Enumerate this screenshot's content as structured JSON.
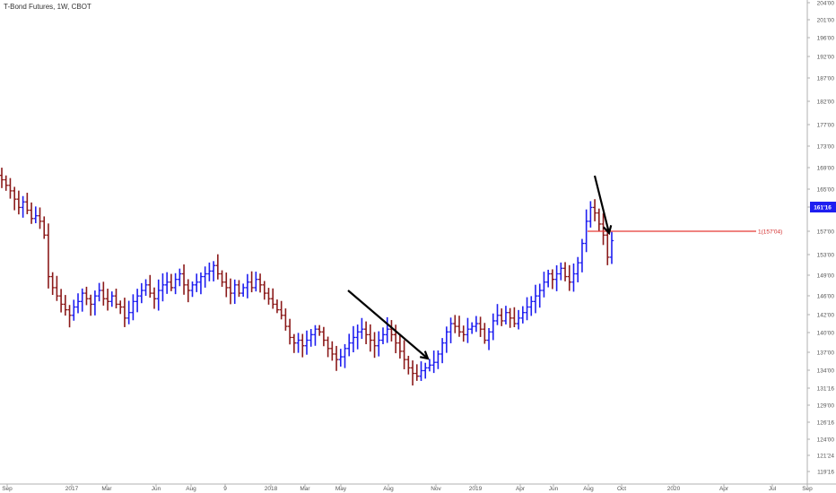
{
  "title": "T-Bond Futures, 1W, CBOT",
  "chart_data": {
    "type": "ohlc",
    "symbol": "T-Bond Futures",
    "interval": "1W",
    "exchange": "CBOT",
    "colors": {
      "up": "#1e1ef0",
      "down": "#8b1a1a",
      "level": "#e53935",
      "badge": "#1e1ef0",
      "arrow": "#000000"
    },
    "ylim": [
      117.5,
      205.0
    ],
    "y_tick_labels": [
      "204'00",
      "201'00",
      "196'00",
      "192'00",
      "187'00",
      "182'00",
      "177'00",
      "173'00",
      "169'00",
      "165'00",
      "161'16",
      "157'00",
      "153'00",
      "149'00",
      "146'00",
      "142'00",
      "140'00",
      "137'00",
      "134'00",
      "131'16",
      "129'00",
      "126'16",
      "124'00",
      "121'24",
      "119'16"
    ],
    "y_tick_values": [
      204,
      201,
      196,
      192,
      187,
      182,
      177,
      173,
      169,
      165,
      161.5,
      157,
      153,
      149,
      146,
      142,
      140,
      137,
      134,
      131.5,
      129,
      126.5,
      124,
      121.75,
      119.5
    ],
    "x_tick_labels": [
      "Sep",
      "2017",
      "Mar",
      "Jun",
      "Aug",
      "9",
      "2018",
      "Mar",
      "May",
      "Aug",
      "Nov",
      "2019",
      "Apr",
      "Jun",
      "Aug",
      "Oct",
      "2020",
      "Apr",
      "Jul",
      "Sep"
    ],
    "current_price": "161'16",
    "level": {
      "value": 157.0,
      "label": "1(157'04)"
    },
    "arrows": [
      {
        "from": [
          146.8,
          "2018-05"
        ],
        "to": [
          136.0,
          "2018-10"
        ]
      },
      {
        "from": [
          168.0,
          "2019-08"
        ],
        "to": [
          156.8,
          "2019-09"
        ]
      }
    ],
    "series_closes": [
      172.5,
      171.5,
      170.5,
      169.0,
      167.5,
      168.5,
      167.0,
      165.5,
      166.0,
      165.0,
      162.5,
      155.0,
      153.0,
      151.5,
      150.0,
      149.0,
      148.0,
      149.5,
      150.5,
      152.0,
      151.0,
      150.0,
      151.5,
      152.5,
      151.0,
      150.5,
      151.5,
      150.0,
      149.5,
      147.5,
      148.5,
      150.5,
      151.5,
      152.5,
      153.5,
      152.0,
      151.0,
      152.5,
      153.5,
      154.0,
      153.0,
      154.5,
      155.5,
      153.5,
      152.5,
      153.5,
      154.0,
      155.0,
      155.5,
      156.0,
      157.0,
      155.5,
      154.0,
      153.0,
      152.0,
      153.5,
      152.0,
      153.0,
      154.0,
      153.0,
      154.5,
      153.5,
      152.0,
      151.0,
      150.0,
      149.0,
      148.0,
      146.0,
      144.0,
      143.0,
      143.5,
      142.5,
      143.5,
      144.5,
      145.5,
      145.0,
      143.5,
      142.0,
      141.0,
      140.0,
      140.5,
      142.0,
      143.0,
      144.0,
      145.0,
      145.5,
      144.5,
      143.5,
      142.5,
      143.5,
      144.5,
      145.5,
      144.5,
      143.0,
      141.5,
      140.0,
      138.5,
      137.5,
      137.0,
      138.0,
      138.5,
      139.0,
      139.5,
      141.0,
      143.0,
      145.0,
      146.5,
      146.0,
      145.0,
      144.5,
      145.5,
      146.0,
      146.5,
      145.5,
      143.5,
      145.0,
      147.0,
      148.0,
      147.0,
      148.5,
      147.5,
      146.5,
      147.5,
      148.5,
      149.5,
      150.5,
      151.5,
      152.5,
      154.0,
      155.5,
      154.5,
      155.5,
      156.5,
      155.0,
      154.0,
      155.5,
      157.5,
      161.0,
      165.0,
      167.5,
      166.5,
      164.5,
      162.5,
      158.5,
      161.5
    ]
  }
}
